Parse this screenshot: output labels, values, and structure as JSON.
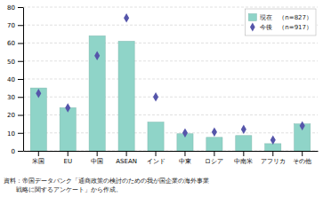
{
  "chart_data": {
    "type": "bar",
    "categories": [
      "米国",
      "EU",
      "中国",
      "ASEAN",
      "インド",
      "中東",
      "ロシア",
      "中南米",
      "アフリカ",
      "その他"
    ],
    "series": [
      {
        "name": "現在　（n=827）",
        "type": "bar",
        "color": "#8fd4c8",
        "values": [
          35,
          24,
          64,
          61,
          16,
          9.5,
          7.5,
          8.5,
          4,
          15
        ]
      },
      {
        "name": "今後　（n=917）",
        "type": "scatter",
        "marker": "diamond",
        "color": "#5555aa",
        "values": [
          32,
          24,
          53,
          74,
          30,
          10,
          10.5,
          12,
          6,
          14
        ]
      }
    ],
    "ylim": [
      0,
      80
    ],
    "yticks": [
      0,
      10,
      20,
      30,
      40,
      50,
      60,
      70,
      80
    ],
    "grid": true,
    "legend": "upper right",
    "annotations": [
      "資料：帝国データバンク「通商政策の検討のための我が国企業の海外事業",
      "　　戦略に関するアンケート」から作成。"
    ]
  }
}
